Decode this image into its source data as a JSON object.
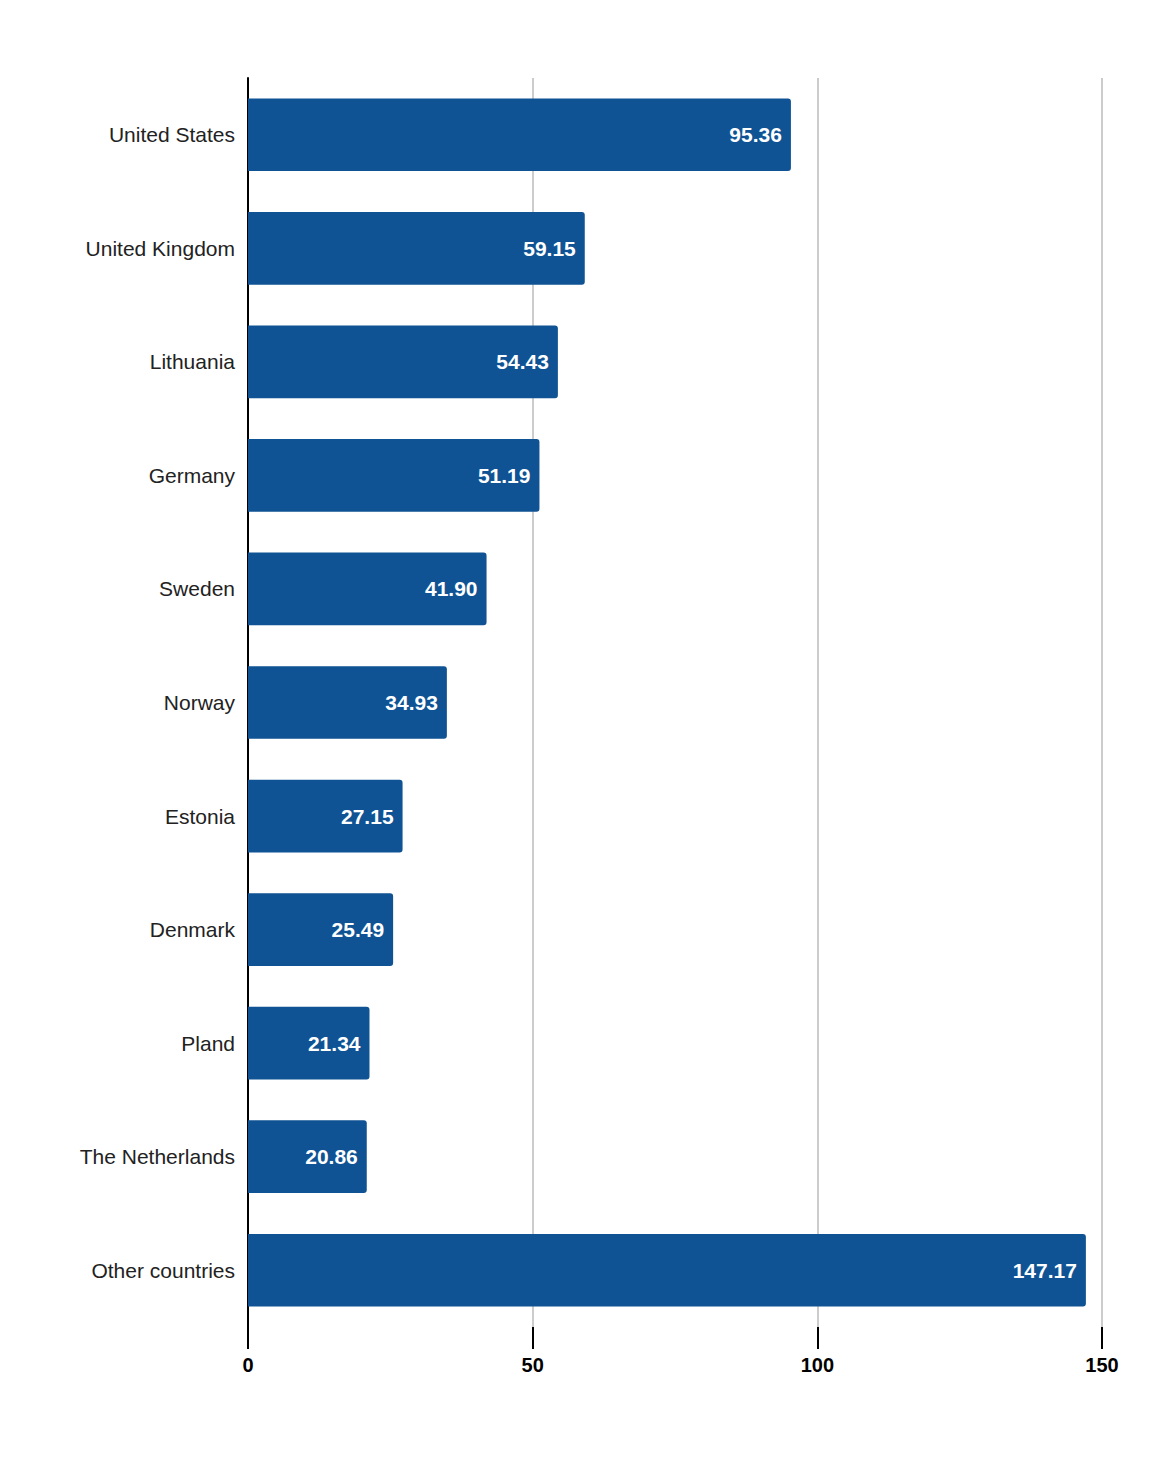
{
  "chart_data": {
    "type": "bar",
    "orientation": "horizontal",
    "categories": [
      "United States",
      "United Kingdom",
      "Lithuania",
      "Germany",
      "Sweden",
      "Norway",
      "Estonia",
      "Denmark",
      "Pland",
      "The Netherlands",
      "Other countries"
    ],
    "values": [
      95.36,
      59.15,
      54.43,
      51.19,
      41.9,
      34.93,
      27.15,
      25.49,
      21.34,
      20.86,
      147.17
    ],
    "value_labels": [
      "95.36",
      "59.15",
      "54.43",
      "51.19",
      "41.90",
      "34.93",
      "27.15",
      "25.49",
      "21.34",
      "20.86",
      "147.17"
    ],
    "color": "#0f5394",
    "xlim": [
      0,
      150
    ],
    "xticks": [
      0,
      50,
      100,
      150
    ],
    "grid": true,
    "data_labels": true
  }
}
